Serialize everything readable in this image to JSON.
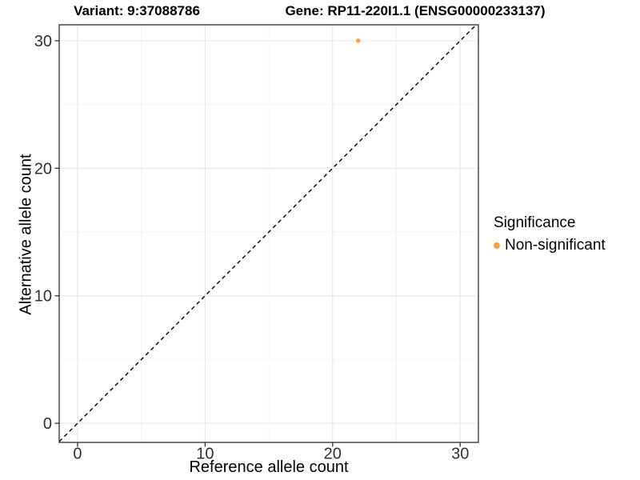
{
  "titles": {
    "variant": "Variant: 9:37088786",
    "gene": "Gene: RP11-220I1.1 (ENSG00000233137)"
  },
  "chart_data": {
    "type": "scatter",
    "xlabel": "Reference allele count",
    "ylabel": "Alternative allele count",
    "xlim": [
      -1.44,
      31.43
    ],
    "ylim": [
      -1.5,
      31.25
    ],
    "xticks": [
      0,
      10,
      20,
      30
    ],
    "yticks": [
      0,
      10,
      20,
      30
    ],
    "xminor": [
      5,
      15,
      25
    ],
    "yminor": [
      5,
      15,
      25
    ],
    "grid": "major+minor",
    "points": [
      {
        "x": 22,
        "y": 30,
        "series": "Non-significant"
      }
    ],
    "identity_line": {
      "slope": 1,
      "intercept": 0,
      "style": "dashed",
      "ends": [
        [
          -1.44,
          -1.44
        ],
        [
          31.25,
          31.25
        ]
      ]
    },
    "legend": {
      "title": "Significance",
      "position": "right",
      "items": [
        {
          "label": "Non-significant",
          "color": "#F9A33C"
        }
      ]
    },
    "colors": {
      "point": "#F9A33C",
      "grid_major": "#E6E6E6",
      "grid_minor": "#F2F2F2",
      "panel_border": "#333333",
      "tick_mark": "#333333",
      "tick_label": "#303030",
      "identity_line": "#000000",
      "background": "#FFFFFF"
    }
  }
}
